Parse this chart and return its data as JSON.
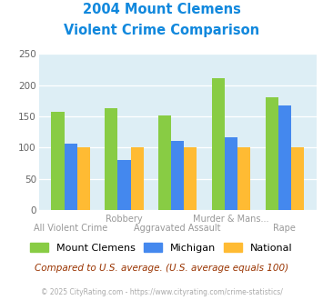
{
  "title_line1": "2004 Mount Clemens",
  "title_line2": "Violent Crime Comparison",
  "group_labels_top": [
    "",
    "Robbery",
    "",
    "Murder & Mans...",
    ""
  ],
  "group_labels_bot": [
    "All Violent Crime",
    "",
    "Aggravated Assault",
    "",
    "Rape"
  ],
  "series": {
    "Mount Clemens": [
      158,
      163,
      151,
      211,
      180
    ],
    "Michigan": [
      106,
      80,
      111,
      117,
      167
    ],
    "National": [
      100,
      100,
      100,
      100,
      100
    ]
  },
  "colors": {
    "Mount Clemens": "#88cc44",
    "Michigan": "#4488ee",
    "National": "#ffbb33"
  },
  "ylim": [
    0,
    250
  ],
  "yticks": [
    0,
    50,
    100,
    150,
    200,
    250
  ],
  "plot_bg_color": "#ddeef5",
  "title_color": "#1188dd",
  "label_color": "#999999",
  "note_text": "Compared to U.S. average. (U.S. average equals 100)",
  "note_color": "#993300",
  "footer_text": "© 2025 CityRating.com - https://www.cityrating.com/crime-statistics/",
  "footer_color": "#aaaaaa"
}
